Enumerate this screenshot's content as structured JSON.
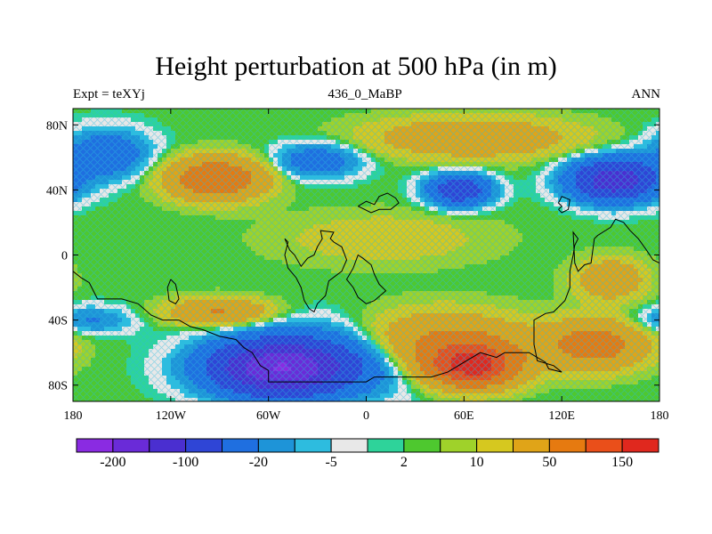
{
  "chart_data": {
    "type": "heatmap",
    "title": "Height perturbation at 500 hPa (in m)",
    "subtitle_left": "Expt = teXYj",
    "subtitle_center": "436_0_MaBP",
    "subtitle_right": "ANN",
    "x_ticks": [
      "180",
      "120W",
      "60W",
      "0",
      "60E",
      "120E",
      "180"
    ],
    "y_ticks": [
      "80N",
      "40N",
      "0",
      "40S",
      "80S"
    ],
    "xlim": [
      -180,
      180
    ],
    "ylim": [
      -90,
      90
    ],
    "colorbar": {
      "colors": [
        "#8a2be2",
        "#6a2bd8",
        "#4a2fd0",
        "#2f45d6",
        "#1f6fe0",
        "#1e94d8",
        "#2dbcdf",
        "#e8e8e8",
        "#2ed39a",
        "#4ec82f",
        "#9fd22a",
        "#d6c81f",
        "#e0a418",
        "#e67a10",
        "#ea4f1a",
        "#e0281e"
      ],
      "labels": [
        "-200",
        "-100",
        "-20",
        "-5",
        "2",
        "10",
        "50",
        "150"
      ]
    },
    "field_features": [
      {
        "lon": -92,
        "lat": 47,
        "value": 90,
        "width_deg": 28,
        "height_deg": 12
      },
      {
        "lon": -55,
        "lat": -70,
        "value": -160,
        "width_deg": 38,
        "height_deg": 15
      },
      {
        "lon": -30,
        "lat": -65,
        "value": -60,
        "width_deg": 55,
        "height_deg": 20
      },
      {
        "lon": 57,
        "lat": 40,
        "value": -90,
        "width_deg": 18,
        "height_deg": 9
      },
      {
        "lon": 152,
        "lat": 46,
        "value": -140,
        "width_deg": 25,
        "height_deg": 12
      },
      {
        "lon": -160,
        "lat": 62,
        "value": -45,
        "width_deg": 25,
        "height_deg": 14
      },
      {
        "lon": -30,
        "lat": 58,
        "value": -40,
        "width_deg": 25,
        "height_deg": 10
      },
      {
        "lon": 65,
        "lat": 72,
        "value": 40,
        "width_deg": 60,
        "height_deg": 12
      },
      {
        "lon": 65,
        "lat": -68,
        "value": 160,
        "width_deg": 25,
        "height_deg": 12
      },
      {
        "lon": 45,
        "lat": -55,
        "value": 60,
        "width_deg": 50,
        "height_deg": 18
      },
      {
        "lon": 140,
        "lat": -55,
        "value": 70,
        "width_deg": 30,
        "height_deg": 14
      },
      {
        "lon": -90,
        "lat": -35,
        "value": 50,
        "width_deg": 30,
        "height_deg": 8
      },
      {
        "lon": -170,
        "lat": -40,
        "value": -25,
        "width_deg": 25,
        "height_deg": 8
      },
      {
        "lon": 10,
        "lat": 10,
        "value": 15,
        "width_deg": 60,
        "height_deg": 15
      },
      {
        "lon": 150,
        "lat": -15,
        "value": 40,
        "width_deg": 20,
        "height_deg": 12
      }
    ]
  }
}
